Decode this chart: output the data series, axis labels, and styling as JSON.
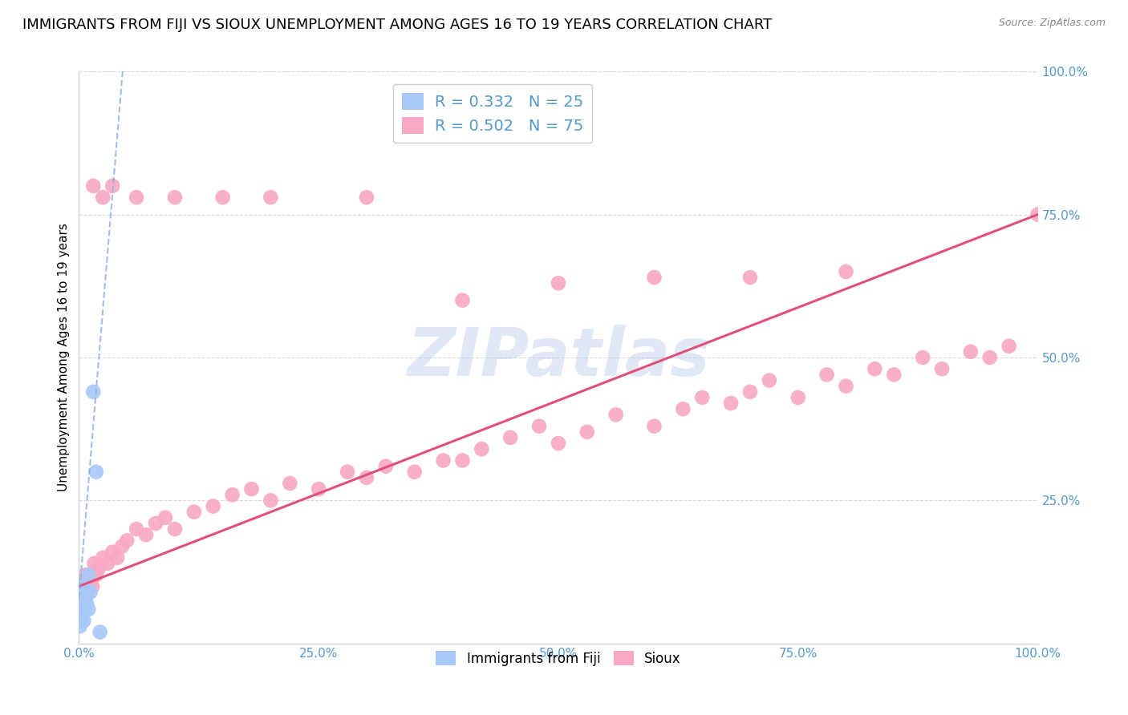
{
  "title": "IMMIGRANTS FROM FIJI VS SIOUX UNEMPLOYMENT AMONG AGES 16 TO 19 YEARS CORRELATION CHART",
  "source": "Source: ZipAtlas.com",
  "ylabel": "Unemployment Among Ages 16 to 19 years",
  "xlim": [
    0.0,
    1.0
  ],
  "ylim": [
    0.0,
    1.0
  ],
  "xtick_labels": [
    "0.0%",
    "25.0%",
    "50.0%",
    "75.0%",
    "100.0%"
  ],
  "xtick_positions": [
    0.0,
    0.25,
    0.5,
    0.75,
    1.0
  ],
  "right_ytick_labels": [
    "100.0%",
    "75.0%",
    "50.0%",
    "25.0%"
  ],
  "right_ytick_positions": [
    1.0,
    0.75,
    0.5,
    0.25
  ],
  "background_color": "#ffffff",
  "grid_color": "#d0d0d0",
  "watermark_text": "ZIPatlas",
  "fiji_color": "#a8c8f8",
  "fiji_edge_color": "#90b0e8",
  "sioux_color": "#f8a8c0",
  "sioux_edge_color": "#e890a8",
  "fiji_line_color": "#8ab0e0",
  "sioux_line_color": "#e0507a",
  "fiji_R": 0.332,
  "fiji_N": 25,
  "sioux_R": 0.502,
  "sioux_N": 75,
  "title_fontsize": 13,
  "axis_label_fontsize": 11,
  "tick_label_color": "#5599cc",
  "legend_text_color": "#5599cc",
  "fiji_scatter_x": [
    0.0,
    0.001,
    0.001,
    0.001,
    0.002,
    0.002,
    0.002,
    0.003,
    0.003,
    0.003,
    0.004,
    0.004,
    0.005,
    0.005,
    0.005,
    0.006,
    0.007,
    0.008,
    0.009,
    0.01,
    0.01,
    0.012,
    0.015,
    0.018,
    0.022
  ],
  "fiji_scatter_y": [
    0.05,
    0.03,
    0.06,
    0.08,
    0.04,
    0.06,
    0.09,
    0.05,
    0.07,
    0.1,
    0.06,
    0.08,
    0.04,
    0.07,
    0.1,
    0.06,
    0.08,
    0.07,
    0.09,
    0.06,
    0.12,
    0.09,
    0.44,
    0.3,
    0.02
  ],
  "sioux_scatter_x": [
    0.001,
    0.002,
    0.003,
    0.004,
    0.005,
    0.006,
    0.007,
    0.008,
    0.009,
    0.01,
    0.012,
    0.014,
    0.016,
    0.018,
    0.02,
    0.025,
    0.03,
    0.035,
    0.04,
    0.045,
    0.05,
    0.06,
    0.07,
    0.08,
    0.09,
    0.1,
    0.12,
    0.14,
    0.16,
    0.18,
    0.2,
    0.22,
    0.25,
    0.28,
    0.3,
    0.32,
    0.35,
    0.38,
    0.4,
    0.42,
    0.45,
    0.48,
    0.5,
    0.53,
    0.56,
    0.6,
    0.63,
    0.65,
    0.68,
    0.7,
    0.72,
    0.75,
    0.78,
    0.8,
    0.83,
    0.85,
    0.88,
    0.9,
    0.93,
    0.95,
    0.97,
    1.0,
    0.015,
    0.025,
    0.035,
    0.06,
    0.1,
    0.15,
    0.2,
    0.3,
    0.4,
    0.5,
    0.6,
    0.7,
    0.8
  ],
  "sioux_scatter_y": [
    0.06,
    0.09,
    0.08,
    0.11,
    0.1,
    0.08,
    0.12,
    0.09,
    0.11,
    0.1,
    0.12,
    0.1,
    0.14,
    0.12,
    0.13,
    0.15,
    0.14,
    0.16,
    0.15,
    0.17,
    0.18,
    0.2,
    0.19,
    0.21,
    0.22,
    0.2,
    0.23,
    0.24,
    0.26,
    0.27,
    0.25,
    0.28,
    0.27,
    0.3,
    0.29,
    0.31,
    0.3,
    0.32,
    0.32,
    0.34,
    0.36,
    0.38,
    0.35,
    0.37,
    0.4,
    0.38,
    0.41,
    0.43,
    0.42,
    0.44,
    0.46,
    0.43,
    0.47,
    0.45,
    0.48,
    0.47,
    0.5,
    0.48,
    0.51,
    0.5,
    0.52,
    0.75,
    0.8,
    0.78,
    0.8,
    0.78,
    0.78,
    0.78,
    0.78,
    0.78,
    0.6,
    0.63,
    0.64,
    0.64,
    0.65
  ]
}
